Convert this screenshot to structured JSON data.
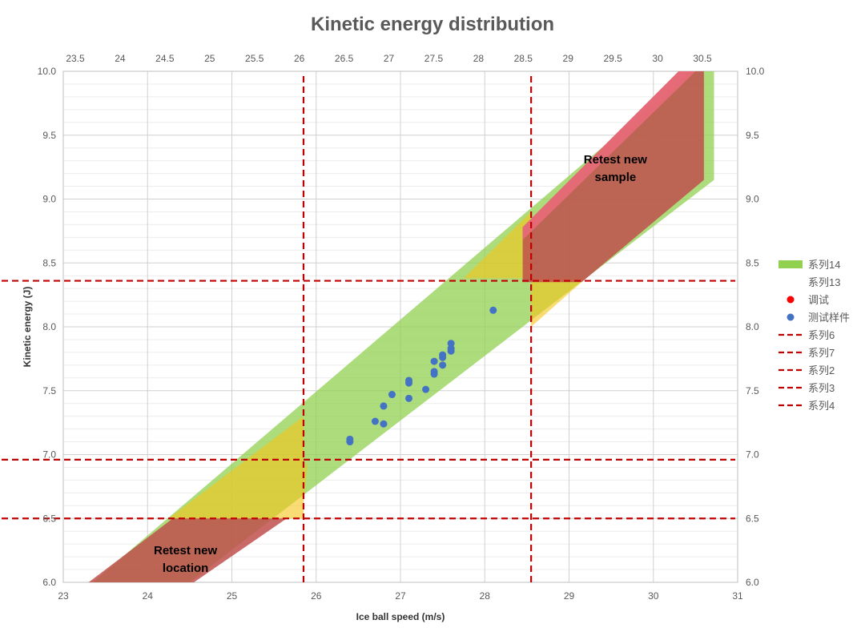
{
  "chart_data": {
    "type": "scatter",
    "title": "Kinetic energy distribution",
    "xlabel": "Ice ball speed (m/s)",
    "ylabel": "Kinetic energy (J)",
    "xlim": [
      23,
      31
    ],
    "ylim": [
      6.0,
      10.0
    ],
    "x2lim": [
      23.5,
      30.75
    ],
    "x_ticks": [
      "23",
      "24",
      "25",
      "26",
      "27",
      "28",
      "29",
      "30",
      "31"
    ],
    "x2_ticks": [
      "23.5",
      "24",
      "24.5",
      "25",
      "25.5",
      "26",
      "26.5",
      "27",
      "27.5",
      "28",
      "28.5",
      "29",
      "29.5",
      "30",
      "30.5"
    ],
    "y_ticks": [
      "6.0",
      "6.5",
      "7.0",
      "7.5",
      "8.0",
      "8.5",
      "9.0",
      "9.5",
      "10.0"
    ],
    "y2_ticks": [
      "6.0",
      "6.5",
      "7.0",
      "7.5",
      "8.0",
      "8.5",
      "9.0",
      "9.5",
      "10.0"
    ],
    "grid": true,
    "legend_position": "right",
    "bands": [
      {
        "name": "系列14",
        "color": "#92d050",
        "opacity": 0.75,
        "points": [
          [
            23.35,
            6.0
          ],
          [
            30.45,
            10.0
          ],
          [
            30.72,
            10.0
          ],
          [
            30.72,
            9.15
          ],
          [
            24.5,
            6.0
          ]
        ]
      },
      {
        "name": "yellow-zone-low",
        "color": "#f5c518",
        "opacity": 0.6,
        "points": [
          [
            24.25,
            6.5
          ],
          [
            25.85,
            7.3
          ],
          [
            25.85,
            6.6
          ],
          [
            25.85,
            6.5
          ],
          [
            25.6,
            6.5
          ],
          [
            25.9,
            6.95
          ],
          [
            25.85,
            6.62
          ],
          [
            25.65,
            6.5
          ]
        ]
      },
      {
        "name": "yellow-zone-high",
        "color": "#f5c518",
        "opacity": 0.6,
        "points": [
          [
            27.75,
            8.38
          ],
          [
            28.55,
            8.9
          ],
          [
            28.55,
            8.0
          ],
          [
            29.2,
            8.38
          ]
        ]
      },
      {
        "name": "red-zone-low",
        "color": "#c0504d",
        "opacity": 0.85,
        "points": [
          [
            23.3,
            6.0
          ],
          [
            24.3,
            6.5
          ],
          [
            25.65,
            6.5
          ],
          [
            24.55,
            6.0
          ]
        ]
      },
      {
        "name": "red-zone-high",
        "color": "#c0504d",
        "opacity": 0.85,
        "points": [
          [
            28.45,
            8.78
          ],
          [
            30.3,
            10.0
          ],
          [
            30.6,
            10.0
          ],
          [
            30.6,
            9.15
          ],
          [
            29.15,
            8.35
          ],
          [
            28.45,
            8.35
          ]
        ]
      },
      {
        "name": "red-top-edge",
        "color": "#e86c7a",
        "opacity": 0.9,
        "points": [
          [
            28.45,
            8.78
          ],
          [
            30.3,
            10.0
          ],
          [
            30.5,
            10.0
          ],
          [
            28.45,
            8.68
          ]
        ]
      }
    ],
    "series": [
      {
        "name": "测试样件",
        "color": "#4472c4",
        "points": [
          [
            26.4,
            7.1
          ],
          [
            26.4,
            7.12
          ],
          [
            26.7,
            7.26
          ],
          [
            26.8,
            7.24
          ],
          [
            26.8,
            7.38
          ],
          [
            26.9,
            7.47
          ],
          [
            27.1,
            7.44
          ],
          [
            27.1,
            7.56
          ],
          [
            27.1,
            7.58
          ],
          [
            27.3,
            7.51
          ],
          [
            27.4,
            7.63
          ],
          [
            27.4,
            7.65
          ],
          [
            27.4,
            7.73
          ],
          [
            27.5,
            7.7
          ],
          [
            27.5,
            7.76
          ],
          [
            27.5,
            7.78
          ],
          [
            27.6,
            7.81
          ],
          [
            27.6,
            7.83
          ],
          [
            27.6,
            7.87
          ],
          [
            28.1,
            8.13
          ]
        ]
      },
      {
        "name": "调试",
        "color": "#ff0000",
        "points": []
      }
    ],
    "reference_lines": [
      {
        "name": "系列6",
        "orientation": "vertical",
        "value": 25.85,
        "color": "#c00000"
      },
      {
        "name": "系列7",
        "orientation": "vertical",
        "value": 28.55,
        "color": "#c00000"
      },
      {
        "name": "系列2",
        "orientation": "horizontal",
        "value": 8.36,
        "color": "#c00000"
      },
      {
        "name": "系列3",
        "orientation": "horizontal",
        "value": 6.96,
        "color": "#c00000"
      },
      {
        "name": "系列4",
        "orientation": "horizontal",
        "value": 6.5,
        "color": "#c00000"
      }
    ],
    "annotations": [
      {
        "lines": [
          "Retest new",
          "location"
        ],
        "x": 24.45,
        "y": 6.22
      },
      {
        "lines": [
          "Retest new",
          "sample"
        ],
        "x": 29.55,
        "y": 9.28
      }
    ],
    "legend": [
      {
        "label": "系列14",
        "kind": "band",
        "color": "#92d050"
      },
      {
        "label": "系列13",
        "kind": "none",
        "color": ""
      },
      {
        "label": "调试",
        "kind": "dot",
        "color": "#ff0000"
      },
      {
        "label": "测试样件",
        "kind": "dot",
        "color": "#4472c4"
      },
      {
        "label": "系列6",
        "kind": "dash",
        "color": "#c00000"
      },
      {
        "label": "系列7",
        "kind": "dash",
        "color": "#c00000"
      },
      {
        "label": "系列2",
        "kind": "dash",
        "color": "#c00000"
      },
      {
        "label": "系列3",
        "kind": "dash",
        "color": "#c00000"
      },
      {
        "label": "系列4",
        "kind": "dash",
        "color": "#c00000"
      }
    ]
  }
}
